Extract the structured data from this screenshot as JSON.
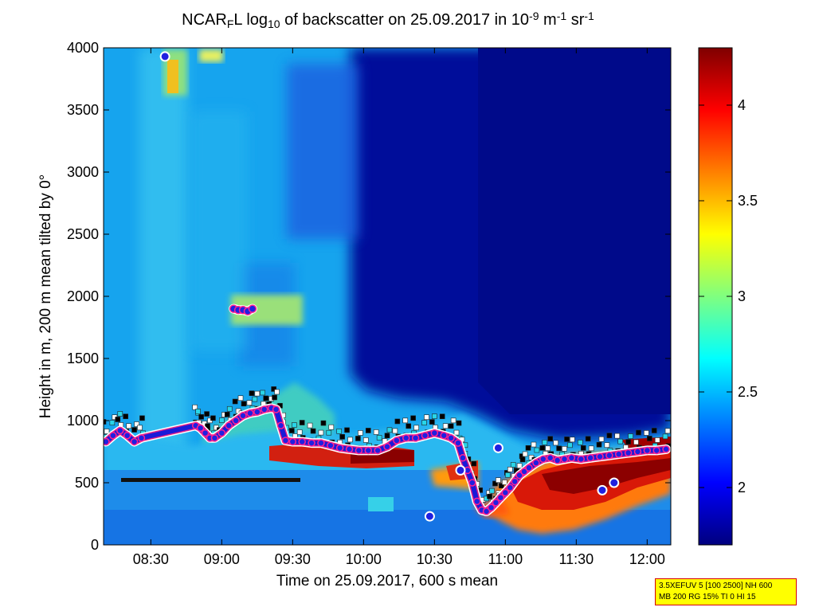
{
  "chart_data": {
    "type": "heatmap",
    "title": {
      "parts": [
        {
          "text": "NCAR",
          "style": "normal"
        },
        {
          "text": "F",
          "style": "sub"
        },
        {
          "text": "L log",
          "style": "normal"
        },
        {
          "text": "10",
          "style": "sub"
        },
        {
          "text": " of backscatter on 25.09.2017 in 10",
          "style": "normal"
        },
        {
          "text": "-9",
          "style": "sup"
        },
        {
          "text": " m",
          "style": "normal"
        },
        {
          "text": "-1",
          "style": "sup"
        },
        {
          "text": " sr",
          "style": "normal"
        },
        {
          "text": "-1",
          "style": "sup"
        }
      ]
    },
    "xlabel": "Time on 25.09.2017, 600 s mean",
    "ylabel": "Height in m, 200 m mean tilted by 0°",
    "xlim_minutes": [
      490,
      730
    ],
    "ylim": [
      0,
      4000
    ],
    "x_ticks": [
      {
        "minutes": 510,
        "label": "08:30"
      },
      {
        "minutes": 540,
        "label": "09:00"
      },
      {
        "minutes": 570,
        "label": "09:30"
      },
      {
        "minutes": 600,
        "label": "10:00"
      },
      {
        "minutes": 630,
        "label": "10:30"
      },
      {
        "minutes": 660,
        "label": "11:00"
      },
      {
        "minutes": 690,
        "label": "11:30"
      },
      {
        "minutes": 720,
        "label": "12:00"
      }
    ],
    "y_ticks": [
      0,
      500,
      1000,
      1500,
      2000,
      2500,
      3000,
      3500,
      4000
    ],
    "colorbar": {
      "range": [
        1.7,
        4.3
      ],
      "ticks": [
        "2",
        "2.5",
        "3",
        "3.5",
        "4"
      ],
      "tick_values": [
        2,
        2.5,
        3,
        3.5,
        4
      ],
      "colormap": "jet"
    },
    "mixing_layer_series": [
      {
        "minutes": 491,
        "height": 830
      },
      {
        "minutes": 494,
        "height": 880
      },
      {
        "minutes": 497,
        "height": 920
      },
      {
        "minutes": 500,
        "height": 880
      },
      {
        "minutes": 503,
        "height": 830
      },
      {
        "minutes": 506,
        "height": 860
      },
      {
        "minutes": 529,
        "height": 960
      },
      {
        "minutes": 531,
        "height": 940
      },
      {
        "minutes": 533,
        "height": 900
      },
      {
        "minutes": 535,
        "height": 860
      },
      {
        "minutes": 537,
        "height": 860
      },
      {
        "minutes": 540,
        "height": 900
      },
      {
        "minutes": 543,
        "height": 960
      },
      {
        "minutes": 546,
        "height": 1000
      },
      {
        "minutes": 549,
        "height": 1040
      },
      {
        "minutes": 552,
        "height": 1060
      },
      {
        "minutes": 555,
        "height": 1070
      },
      {
        "minutes": 558,
        "height": 1090
      },
      {
        "minutes": 561,
        "height": 1100
      },
      {
        "minutes": 563,
        "height": 1090
      },
      {
        "minutes": 565,
        "height": 960
      },
      {
        "minutes": 567,
        "height": 840
      },
      {
        "minutes": 570,
        "height": 830
      },
      {
        "minutes": 574,
        "height": 830
      },
      {
        "minutes": 578,
        "height": 820
      },
      {
        "minutes": 582,
        "height": 820
      },
      {
        "minutes": 586,
        "height": 800
      },
      {
        "minutes": 590,
        "height": 780
      },
      {
        "minutes": 594,
        "height": 770
      },
      {
        "minutes": 598,
        "height": 760
      },
      {
        "minutes": 602,
        "height": 760
      },
      {
        "minutes": 606,
        "height": 760
      },
      {
        "minutes": 610,
        "height": 790
      },
      {
        "minutes": 614,
        "height": 840
      },
      {
        "minutes": 618,
        "height": 860
      },
      {
        "minutes": 622,
        "height": 860
      },
      {
        "minutes": 626,
        "height": 880
      },
      {
        "minutes": 630,
        "height": 900
      },
      {
        "minutes": 634,
        "height": 880
      },
      {
        "minutes": 637,
        "height": 860
      },
      {
        "minutes": 640,
        "height": 820
      },
      {
        "minutes": 642,
        "height": 700
      },
      {
        "minutes": 644,
        "height": 600
      },
      {
        "minutes": 646,
        "height": 500
      },
      {
        "minutes": 648,
        "height": 350
      },
      {
        "minutes": 650,
        "height": 280
      },
      {
        "minutes": 652,
        "height": 270
      },
      {
        "minutes": 654,
        "height": 300
      },
      {
        "minutes": 656,
        "height": 340
      },
      {
        "minutes": 658,
        "height": 380
      },
      {
        "minutes": 660,
        "height": 420
      },
      {
        "minutes": 662,
        "height": 460
      },
      {
        "minutes": 664,
        "height": 510
      },
      {
        "minutes": 666,
        "height": 560
      },
      {
        "minutes": 668,
        "height": 590
      },
      {
        "minutes": 670,
        "height": 620
      },
      {
        "minutes": 673,
        "height": 660
      },
      {
        "minutes": 676,
        "height": 690
      },
      {
        "minutes": 679,
        "height": 700
      },
      {
        "minutes": 682,
        "height": 680
      },
      {
        "minutes": 685,
        "height": 690
      },
      {
        "minutes": 688,
        "height": 700
      },
      {
        "minutes": 692,
        "height": 690
      },
      {
        "minutes": 696,
        "height": 700
      },
      {
        "minutes": 700,
        "height": 710
      },
      {
        "minutes": 704,
        "height": 720
      },
      {
        "minutes": 708,
        "height": 730
      },
      {
        "minutes": 712,
        "height": 740
      },
      {
        "minutes": 716,
        "height": 750
      },
      {
        "minutes": 720,
        "height": 760
      },
      {
        "minutes": 724,
        "height": 760
      },
      {
        "minutes": 728,
        "height": 770
      }
    ],
    "elevated_layer_series": [
      {
        "minutes": 545,
        "height": 1900
      },
      {
        "minutes": 547,
        "height": 1890
      },
      {
        "minutes": 549,
        "height": 1890
      },
      {
        "minutes": 551,
        "height": 1880
      },
      {
        "minutes": 553,
        "height": 1900
      }
    ],
    "isolated_points": [
      {
        "minutes": 516,
        "height": 3930
      },
      {
        "minutes": 628,
        "height": 230
      },
      {
        "minutes": 641,
        "height": 600
      },
      {
        "minutes": 657,
        "height": 780
      },
      {
        "minutes": 701,
        "height": 440
      },
      {
        "minutes": 706,
        "height": 500
      }
    ],
    "aerosol_layer_500m": {
      "start_minutes": 498,
      "end_minutes": 576,
      "height": 510
    }
  },
  "info_box": {
    "line1": "3.5XEFUV 5 [100 2500] NH 600",
    "line2": "MB 200 RG 15% TI 0 HI 15"
  }
}
